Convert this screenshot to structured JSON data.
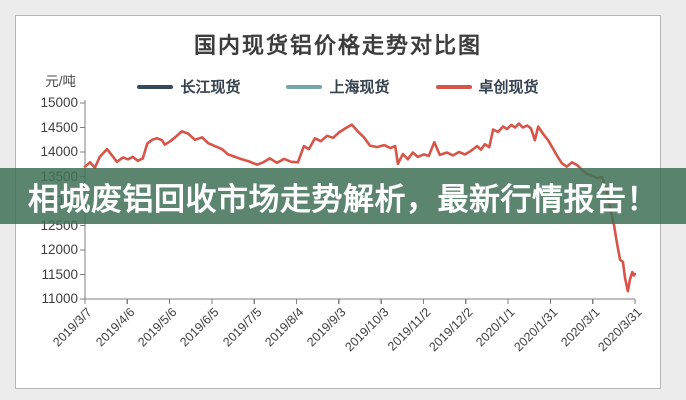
{
  "page": {
    "background_color": "#ececec",
    "panel_border_color": "#b5b5b5"
  },
  "banner": {
    "text": "相城废铝回收市场走势解析，最新行情报告！",
    "band_color": "rgba(65,113,89,0.86)",
    "text_color": "#ffffff"
  },
  "chart_data": {
    "type": "line",
    "title": "国内现货铝价格走势对比图",
    "ylabel": "元/吨",
    "ylim": [
      11000,
      15000
    ],
    "y_ticks": [
      15000,
      14500,
      14000,
      13500,
      13000,
      12500,
      12000,
      11500,
      11000
    ],
    "x_tick_labels": [
      "2019/3/7",
      "2019/4/6",
      "2019/5/6",
      "2019/6/5",
      "2019/7/5",
      "2019/8/4",
      "2019/9/3",
      "2019/10/3",
      "2019/11/2",
      "2019/12/2",
      "2020/1/1",
      "2020/1/31",
      "2020/3/1",
      "2020/3/31"
    ],
    "grid": false,
    "legend_position": "top",
    "axis_color": "#7f7f7f",
    "tick_text_color": "#3f3f3f",
    "legend": [
      {
        "label": "长江现货",
        "color": "#35495c"
      },
      {
        "label": "上海现货",
        "color": "#74a6aa"
      },
      {
        "label": "卓创现货",
        "color": "#d65548"
      }
    ],
    "series": [
      {
        "name": "长江现货",
        "color": "#35495c",
        "visible": false
      },
      {
        "name": "上海现货",
        "color": "#74a6aa",
        "visible": false
      },
      {
        "name": "卓创现货",
        "color": "#d65548",
        "visible": true,
        "points_format": [
          "x_fraction_along_axis",
          "price_yuan_per_ton"
        ],
        "points": [
          [
            0.0,
            13700
          ],
          [
            0.009,
            13790
          ],
          [
            0.018,
            13680
          ],
          [
            0.027,
            13900
          ],
          [
            0.04,
            14060
          ],
          [
            0.049,
            13930
          ],
          [
            0.058,
            13800
          ],
          [
            0.069,
            13890
          ],
          [
            0.078,
            13850
          ],
          [
            0.087,
            13900
          ],
          [
            0.096,
            13820
          ],
          [
            0.105,
            13870
          ],
          [
            0.113,
            14170
          ],
          [
            0.122,
            14250
          ],
          [
            0.131,
            14280
          ],
          [
            0.14,
            14240
          ],
          [
            0.145,
            14150
          ],
          [
            0.155,
            14220
          ],
          [
            0.164,
            14300
          ],
          [
            0.176,
            14420
          ],
          [
            0.187,
            14380
          ],
          [
            0.2,
            14250
          ],
          [
            0.213,
            14300
          ],
          [
            0.224,
            14180
          ],
          [
            0.236,
            14120
          ],
          [
            0.249,
            14060
          ],
          [
            0.26,
            13950
          ],
          [
            0.273,
            13900
          ],
          [
            0.285,
            13850
          ],
          [
            0.3,
            13800
          ],
          [
            0.313,
            13740
          ],
          [
            0.324,
            13790
          ],
          [
            0.336,
            13870
          ],
          [
            0.349,
            13780
          ],
          [
            0.362,
            13860
          ],
          [
            0.375,
            13800
          ],
          [
            0.387,
            13790
          ],
          [
            0.398,
            14120
          ],
          [
            0.407,
            14060
          ],
          [
            0.418,
            14280
          ],
          [
            0.429,
            14220
          ],
          [
            0.44,
            14330
          ],
          [
            0.451,
            14290
          ],
          [
            0.462,
            14400
          ],
          [
            0.473,
            14480
          ],
          [
            0.485,
            14560
          ],
          [
            0.496,
            14420
          ],
          [
            0.507,
            14300
          ],
          [
            0.518,
            14130
          ],
          [
            0.531,
            14100
          ],
          [
            0.544,
            14140
          ],
          [
            0.555,
            14080
          ],
          [
            0.564,
            14120
          ],
          [
            0.569,
            13760
          ],
          [
            0.578,
            13960
          ],
          [
            0.587,
            13850
          ],
          [
            0.596,
            13990
          ],
          [
            0.605,
            13900
          ],
          [
            0.616,
            13950
          ],
          [
            0.625,
            13920
          ],
          [
            0.635,
            14200
          ],
          [
            0.645,
            13940
          ],
          [
            0.658,
            13990
          ],
          [
            0.669,
            13930
          ],
          [
            0.68,
            14000
          ],
          [
            0.691,
            13950
          ],
          [
            0.7,
            14010
          ],
          [
            0.713,
            14120
          ],
          [
            0.72,
            14050
          ],
          [
            0.727,
            14160
          ],
          [
            0.735,
            14100
          ],
          [
            0.742,
            14460
          ],
          [
            0.751,
            14410
          ],
          [
            0.76,
            14520
          ],
          [
            0.767,
            14470
          ],
          [
            0.775,
            14550
          ],
          [
            0.782,
            14500
          ],
          [
            0.789,
            14580
          ],
          [
            0.796,
            14500
          ],
          [
            0.804,
            14540
          ],
          [
            0.811,
            14480
          ],
          [
            0.818,
            14240
          ],
          [
            0.824,
            14520
          ],
          [
            0.833,
            14370
          ],
          [
            0.842,
            14240
          ],
          [
            0.851,
            14070
          ],
          [
            0.86,
            13890
          ],
          [
            0.867,
            13770
          ],
          [
            0.876,
            13700
          ],
          [
            0.885,
            13790
          ],
          [
            0.895,
            13730
          ],
          [
            0.904,
            13630
          ],
          [
            0.913,
            13550
          ],
          [
            0.922,
            13520
          ],
          [
            0.931,
            13470
          ],
          [
            0.94,
            13490
          ],
          [
            0.949,
            13200
          ],
          [
            0.955,
            12850
          ],
          [
            0.962,
            12500
          ],
          [
            0.967,
            12150
          ],
          [
            0.973,
            11800
          ],
          [
            0.978,
            11760
          ],
          [
            0.982,
            11420
          ],
          [
            0.987,
            11160
          ],
          [
            0.991,
            11400
          ],
          [
            0.995,
            11550
          ],
          [
            0.998,
            11480
          ],
          [
            1.0,
            11510
          ]
        ]
      }
    ]
  }
}
